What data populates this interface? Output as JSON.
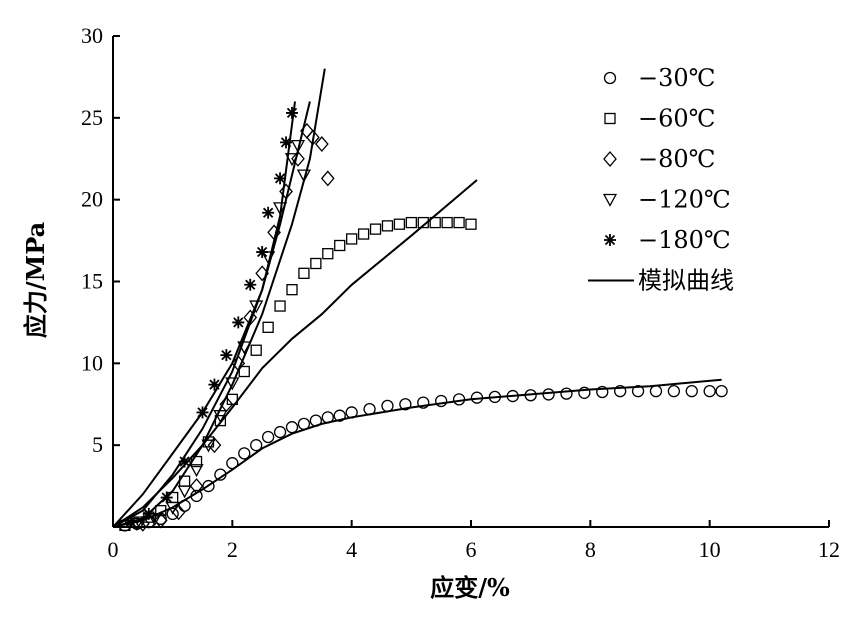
{
  "chart_data": {
    "type": "scatter",
    "xlabel": "应变/%",
    "ylabel": "应力/MPa",
    "xlim": [
      0,
      12
    ],
    "ylim": [
      0,
      30
    ],
    "xticks": [
      "0",
      "2",
      "4",
      "6",
      "8",
      "10",
      "12"
    ],
    "yticks": [
      "5",
      "10",
      "15",
      "20",
      "25",
      "30"
    ],
    "grid": false,
    "legend_position": "top-right",
    "series": [
      {
        "name": "−30℃",
        "marker": "circle",
        "x": [
          0.2,
          0.4,
          0.6,
          0.8,
          1.0,
          1.2,
          1.4,
          1.6,
          1.8,
          2.0,
          2.2,
          2.4,
          2.6,
          2.8,
          3.0,
          3.2,
          3.4,
          3.6,
          3.8,
          4.0,
          4.3,
          4.6,
          4.9,
          5.2,
          5.5,
          5.8,
          6.1,
          6.4,
          6.7,
          7.0,
          7.3,
          7.6,
          7.9,
          8.2,
          8.5,
          8.8,
          9.1,
          9.4,
          9.7,
          10.0,
          10.2
        ],
        "y": [
          0.1,
          0.2,
          0.3,
          0.5,
          0.8,
          1.3,
          1.9,
          2.5,
          3.2,
          3.9,
          4.5,
          5.0,
          5.5,
          5.8,
          6.1,
          6.3,
          6.5,
          6.7,
          6.8,
          7.0,
          7.2,
          7.4,
          7.5,
          7.6,
          7.7,
          7.8,
          7.9,
          7.95,
          8.0,
          8.05,
          8.1,
          8.15,
          8.2,
          8.25,
          8.3,
          8.3,
          8.3,
          8.3,
          8.3,
          8.3,
          8.3
        ]
      },
      {
        "name": "−60℃",
        "marker": "square",
        "x": [
          0.2,
          0.4,
          0.6,
          0.8,
          1.0,
          1.2,
          1.4,
          1.6,
          1.8,
          2.0,
          2.2,
          2.4,
          2.6,
          2.8,
          3.0,
          3.2,
          3.4,
          3.6,
          3.8,
          4.0,
          4.2,
          4.4,
          4.6,
          4.8,
          5.0,
          5.2,
          5.4,
          5.6,
          5.8,
          6.0
        ],
        "y": [
          0.1,
          0.3,
          0.6,
          1.0,
          1.8,
          2.8,
          4.0,
          5.2,
          6.5,
          7.8,
          9.5,
          10.8,
          12.2,
          13.5,
          14.5,
          15.5,
          16.1,
          16.7,
          17.2,
          17.6,
          17.9,
          18.2,
          18.4,
          18.5,
          18.6,
          18.6,
          18.6,
          18.6,
          18.6,
          18.5
        ]
      },
      {
        "name": "−80℃",
        "marker": "diamond",
        "x": [
          0.5,
          0.8,
          1.1,
          1.4,
          1.7,
          1.9,
          2.1,
          2.3,
          2.5,
          2.7,
          2.9,
          3.1,
          3.25,
          3.35,
          3.5,
          3.6
        ],
        "y": [
          0.2,
          0.4,
          0.9,
          2.5,
          5.0,
          7.5,
          10.0,
          12.8,
          15.5,
          18.0,
          20.5,
          22.5,
          24.2,
          23.8,
          23.4,
          21.3
        ]
      },
      {
        "name": "−120℃",
        "marker": "triangle-down",
        "x": [
          0.4,
          0.7,
          1.0,
          1.2,
          1.4,
          1.6,
          1.8,
          2.0,
          2.2,
          2.4,
          2.6,
          2.8,
          3.0,
          3.1,
          3.2
        ],
        "y": [
          0.2,
          0.5,
          1.2,
          2.2,
          3.5,
          5.0,
          6.8,
          8.8,
          11.0,
          13.5,
          16.5,
          19.5,
          22.5,
          23.3,
          21.5
        ]
      },
      {
        "name": "−180℃",
        "marker": "asterisk",
        "x": [
          0.3,
          0.6,
          0.9,
          1.2,
          1.5,
          1.7,
          1.9,
          2.1,
          2.3,
          2.5,
          2.6,
          2.8,
          2.9,
          3.0
        ],
        "y": [
          0.3,
          0.8,
          1.8,
          4.0,
          7.0,
          8.7,
          10.5,
          12.5,
          14.8,
          16.8,
          19.2,
          21.3,
          23.5,
          25.3
        ]
      }
    ],
    "fitted_curves": {
      "name": "模拟曲线",
      "curves": [
        {
          "x": [
            0,
            0.5,
            1.0,
            1.5,
            2.0,
            2.5,
            3.0,
            3.5,
            4.0,
            5.0,
            6.0,
            7.0,
            8.0,
            9.0,
            10.2
          ],
          "y": [
            0,
            0.4,
            1.2,
            2.3,
            3.5,
            4.8,
            5.7,
            6.3,
            6.7,
            7.3,
            7.8,
            8.1,
            8.4,
            8.6,
            9.0
          ]
        },
        {
          "x": [
            0,
            0.5,
            1.0,
            1.5,
            2.0,
            2.5,
            3.0,
            3.5,
            4.0,
            5.0,
            6.1
          ],
          "y": [
            0,
            1.2,
            3.0,
            5.0,
            7.3,
            9.7,
            11.5,
            13.0,
            14.8,
            17.8,
            21.2
          ]
        },
        {
          "x": [
            0,
            0.5,
            1.0,
            1.5,
            2.0,
            2.5,
            3.0,
            3.3,
            3.55
          ],
          "y": [
            0,
            0.5,
            2.2,
            5.0,
            8.7,
            13.0,
            18.5,
            22.5,
            28.0
          ]
        },
        {
          "x": [
            0,
            0.5,
            1.0,
            1.5,
            2.0,
            2.5,
            2.8,
            3.0,
            3.3
          ],
          "y": [
            0,
            1.0,
            3.2,
            6.0,
            9.5,
            14.5,
            18.5,
            21.5,
            26.0
          ]
        },
        {
          "x": [
            0,
            0.5,
            1.0,
            1.5,
            2.0,
            2.5,
            2.8,
            3.05
          ],
          "y": [
            0,
            2.0,
            4.5,
            7.0,
            10.0,
            14.5,
            19.0,
            26.0
          ]
        }
      ]
    }
  }
}
